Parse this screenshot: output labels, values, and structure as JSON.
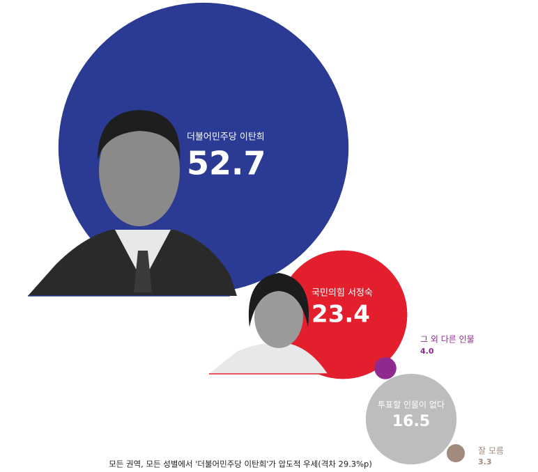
{
  "chart_data": {
    "type": "bubble",
    "categories": [
      "더불어민주당 이탄희",
      "국민의힘 서정숙",
      "그 외 다른 인물",
      "투표할 인물이 없다",
      "잘 모름"
    ],
    "values": [
      52.7,
      23.4,
      4.0,
      16.5,
      3.3
    ],
    "value_labels": [
      "52.7",
      "23.4",
      "4.0",
      "16.5",
      "3.3"
    ],
    "colors": [
      "#2b3a92",
      "#e31e2d",
      "#8e2a8e",
      "#bdbdbf",
      "#a18b7f"
    ],
    "note": "모든 권역, 모든 성별에서 '더불어민주당 이탄희'가 압도적 우세(격차 29.3%p)"
  }
}
